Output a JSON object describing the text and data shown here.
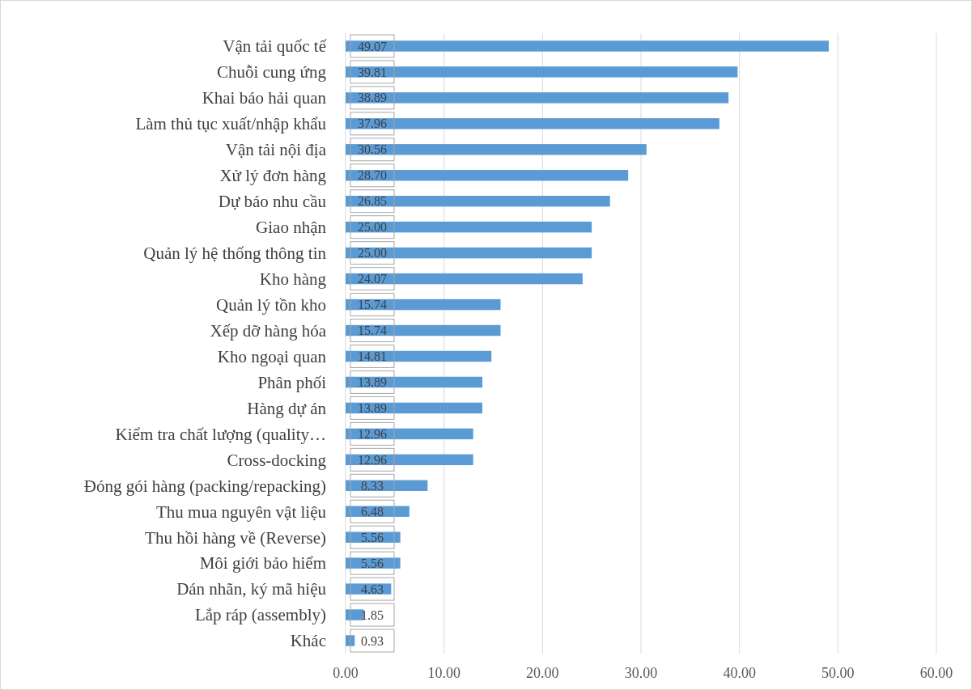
{
  "chart_data": {
    "type": "bar",
    "orientation": "horizontal",
    "categories": [
      "Vận tải quốc tế",
      "Chuỗi cung ứng",
      "Khai báo hải quan",
      "Làm thủ tục xuất/nhập khẩu",
      "Vận tải nội địa",
      "Xử lý đơn hàng",
      "Dự báo nhu cầu",
      "Giao nhận",
      "Quản lý hệ thống thông tin",
      "Kho hàng",
      "Quản lý tồn kho",
      "Xếp dỡ hàng hóa",
      "Kho ngoại quan",
      "Phân phối",
      "Hàng dự án",
      "Kiểm tra chất lượng (quality…",
      "Cross-docking",
      "Đóng gói hàng (packing/repacking)",
      "Thu mua nguyên vật liệu",
      "Thu hồi hàng về (Reverse)",
      "Môi giới bảo hiểm",
      "Dán nhãn, ký mã hiệu",
      "Lắp ráp (assembly)",
      "Khác"
    ],
    "values": [
      49.07,
      39.81,
      38.89,
      37.96,
      30.56,
      28.7,
      26.85,
      25,
      25,
      24.07,
      15.74,
      15.74,
      14.81,
      13.89,
      13.89,
      12.96,
      12.96,
      8.33,
      6.48,
      5.56,
      5.56,
      4.63,
      1.85,
      0.93
    ],
    "value_labels": [
      "49.07",
      "39.81",
      "38.89",
      "37.96",
      "30.56",
      "28.70",
      "26.85",
      "25.00",
      "25.00",
      "24.07",
      "15.74",
      "15.74",
      "14.81",
      "13.89",
      "13.89",
      "12.96",
      "12.96",
      "8.33",
      "6.48",
      "5.56",
      "5.56",
      "4.63",
      "1.85",
      "0.93"
    ],
    "color": "#5b9bd5",
    "xlim": [
      0,
      60
    ],
    "xticks": [
      {
        "value": 0,
        "label": "0.00"
      },
      {
        "value": 10,
        "label": "10.00"
      },
      {
        "value": 20,
        "label": "20.00"
      },
      {
        "value": 30,
        "label": "30.00"
      },
      {
        "value": 40,
        "label": "40.00"
      },
      {
        "value": 50,
        "label": "50.00"
      },
      {
        "value": 60,
        "label": "60.00"
      }
    ],
    "grid": "x"
  }
}
